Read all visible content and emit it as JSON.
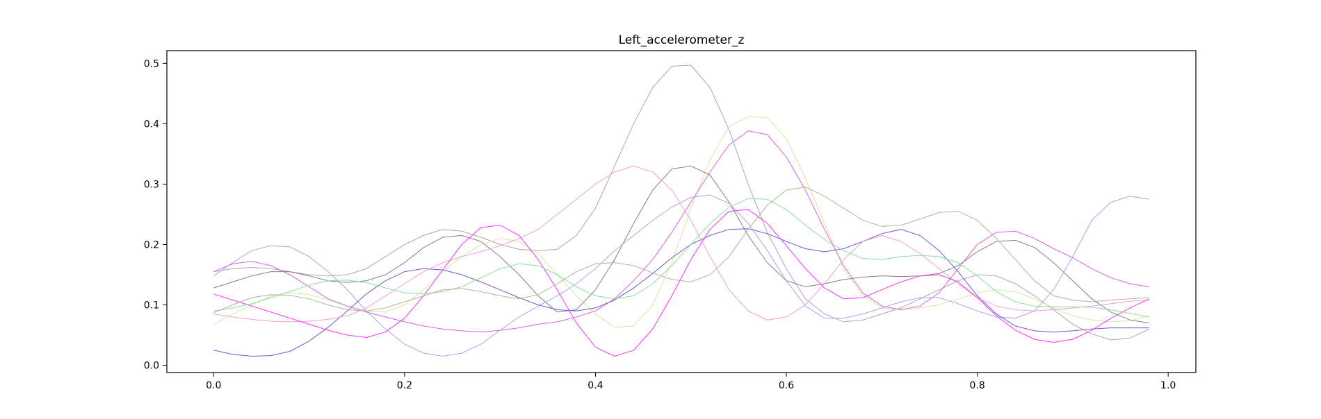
{
  "chart_data": {
    "type": "line",
    "title": "Left_accelerometer_z",
    "xlabel": "",
    "ylabel": "",
    "xlim": [
      -0.049,
      1.029
    ],
    "ylim": [
      -0.012,
      0.521
    ],
    "x_ticks": [
      0.0,
      0.2,
      0.4,
      0.6,
      0.8,
      1.0
    ],
    "x_tick_labels": [
      "0.0",
      "0.2",
      "0.4",
      "0.6",
      "0.8",
      "1.0"
    ],
    "y_ticks": [
      0.0,
      0.1,
      0.2,
      0.3,
      0.4,
      0.5
    ],
    "y_tick_labels": [
      "0.0",
      "0.1",
      "0.2",
      "0.3",
      "0.4",
      "0.5"
    ],
    "grid": false,
    "legend": "none",
    "x": [
      0.0,
      0.02,
      0.04,
      0.06,
      0.08,
      0.1,
      0.12,
      0.14,
      0.16,
      0.18,
      0.2,
      0.22,
      0.24,
      0.26,
      0.28,
      0.3,
      0.32,
      0.34,
      0.36,
      0.38,
      0.4,
      0.42,
      0.44,
      0.46,
      0.48,
      0.5,
      0.52,
      0.54,
      0.56,
      0.58,
      0.6,
      0.62,
      0.64,
      0.66,
      0.68,
      0.7,
      0.72,
      0.74,
      0.76,
      0.78,
      0.8,
      0.82,
      0.84,
      0.86,
      0.88,
      0.9,
      0.92,
      0.94,
      0.96,
      0.98
    ],
    "series": [
      {
        "color": "#b0a0b8",
        "values": [
          0.155,
          0.16,
          0.162,
          0.16,
          0.155,
          0.15,
          0.148,
          0.15,
          0.16,
          0.18,
          0.2,
          0.215,
          0.225,
          0.222,
          0.212,
          0.2,
          0.192,
          0.19,
          0.192,
          0.215,
          0.26,
          0.33,
          0.4,
          0.46,
          0.495,
          0.497,
          0.46,
          0.39,
          0.3,
          0.22,
          0.16,
          0.11,
          0.085,
          0.072,
          0.075,
          0.085,
          0.095,
          0.11,
          0.125,
          0.14,
          0.15,
          0.148,
          0.135,
          0.115,
          0.092,
          0.068,
          0.052,
          0.042,
          0.045,
          0.06
        ]
      },
      {
        "color": "#d4e8a0",
        "values": [
          0.068,
          0.085,
          0.1,
          0.115,
          0.12,
          0.117,
          0.108,
          0.098,
          0.09,
          0.088,
          0.1,
          0.125,
          0.155,
          0.18,
          0.2,
          0.21,
          0.205,
          0.185,
          0.15,
          0.115,
          0.085,
          0.063,
          0.065,
          0.1,
          0.17,
          0.26,
          0.34,
          0.395,
          0.412,
          0.41,
          0.375,
          0.31,
          0.235,
          0.16,
          0.115,
          0.095,
          0.092,
          0.095,
          0.1,
          0.11,
          0.12,
          0.125,
          0.122,
          0.11,
          0.095,
          0.082,
          0.075,
          0.072,
          0.074,
          0.082
        ]
      },
      {
        "color": "#e060e0",
        "values": [
          0.155,
          0.168,
          0.172,
          0.165,
          0.15,
          0.13,
          0.11,
          0.098,
          0.088,
          0.08,
          0.072,
          0.065,
          0.06,
          0.057,
          0.055,
          0.058,
          0.062,
          0.068,
          0.072,
          0.08,
          0.09,
          0.11,
          0.14,
          0.175,
          0.22,
          0.27,
          0.32,
          0.365,
          0.388,
          0.382,
          0.345,
          0.29,
          0.225,
          0.165,
          0.12,
          0.098,
          0.092,
          0.098,
          0.12,
          0.16,
          0.2,
          0.22,
          0.222,
          0.21,
          0.193,
          0.178,
          0.16,
          0.145,
          0.135,
          0.13
        ]
      },
      {
        "color": "#808080",
        "values": [
          0.128,
          0.138,
          0.148,
          0.155,
          0.155,
          0.148,
          0.14,
          0.137,
          0.14,
          0.15,
          0.17,
          0.195,
          0.212,
          0.215,
          0.205,
          0.18,
          0.15,
          0.115,
          0.088,
          0.092,
          0.125,
          0.175,
          0.235,
          0.29,
          0.325,
          0.33,
          0.315,
          0.27,
          0.215,
          0.17,
          0.14,
          0.13,
          0.135,
          0.142,
          0.146,
          0.148,
          0.147,
          0.148,
          0.152,
          0.165,
          0.188,
          0.205,
          0.207,
          0.195,
          0.17,
          0.14,
          0.11,
          0.088,
          0.075,
          0.07
        ]
      },
      {
        "color": "#a8a4f0",
        "values": [
          0.148,
          0.17,
          0.19,
          0.198,
          0.196,
          0.18,
          0.155,
          0.125,
          0.09,
          0.06,
          0.035,
          0.02,
          0.015,
          0.02,
          0.035,
          0.058,
          0.08,
          0.098,
          0.115,
          0.135,
          0.16,
          0.19,
          0.215,
          0.24,
          0.262,
          0.278,
          0.282,
          0.268,
          0.235,
          0.19,
          0.14,
          0.098,
          0.078,
          0.078,
          0.085,
          0.095,
          0.105,
          0.112,
          0.112,
          0.102,
          0.09,
          0.08,
          0.078,
          0.09,
          0.125,
          0.18,
          0.24,
          0.27,
          0.28,
          0.275
        ]
      },
      {
        "color": "#6a5acd",
        "values": [
          0.025,
          0.018,
          0.015,
          0.016,
          0.023,
          0.04,
          0.063,
          0.09,
          0.118,
          0.14,
          0.155,
          0.16,
          0.158,
          0.15,
          0.138,
          0.125,
          0.112,
          0.1,
          0.092,
          0.09,
          0.095,
          0.108,
          0.128,
          0.152,
          0.178,
          0.2,
          0.215,
          0.225,
          0.226,
          0.218,
          0.205,
          0.193,
          0.188,
          0.193,
          0.205,
          0.218,
          0.225,
          0.215,
          0.19,
          0.155,
          0.115,
          0.085,
          0.065,
          0.057,
          0.055,
          0.057,
          0.06,
          0.062,
          0.062,
          0.062
        ]
      },
      {
        "color": "#f0a0d0",
        "values": [
          0.085,
          0.08,
          0.076,
          0.073,
          0.072,
          0.073,
          0.076,
          0.082,
          0.095,
          0.115,
          0.135,
          0.155,
          0.17,
          0.18,
          0.188,
          0.198,
          0.21,
          0.225,
          0.25,
          0.275,
          0.3,
          0.32,
          0.33,
          0.32,
          0.29,
          0.24,
          0.18,
          0.125,
          0.09,
          0.075,
          0.08,
          0.1,
          0.135,
          0.175,
          0.205,
          0.215,
          0.205,
          0.185,
          0.16,
          0.135,
          0.112,
          0.098,
          0.092,
          0.09,
          0.092,
          0.095,
          0.098,
          0.102,
          0.106,
          0.108
        ]
      },
      {
        "color": "#ff30ff",
        "values": [
          0.118,
          0.108,
          0.098,
          0.088,
          0.078,
          0.068,
          0.058,
          0.05,
          0.046,
          0.055,
          0.078,
          0.115,
          0.158,
          0.2,
          0.228,
          0.232,
          0.215,
          0.175,
          0.125,
          0.07,
          0.03,
          0.015,
          0.025,
          0.06,
          0.115,
          0.175,
          0.225,
          0.255,
          0.258,
          0.235,
          0.198,
          0.16,
          0.128,
          0.11,
          0.112,
          0.125,
          0.138,
          0.148,
          0.15,
          0.138,
          0.112,
          0.082,
          0.058,
          0.043,
          0.038,
          0.043,
          0.058,
          0.078,
          0.095,
          0.11
        ]
      },
      {
        "color": "#88e0a0",
        "values": [
          0.09,
          0.095,
          0.102,
          0.112,
          0.122,
          0.133,
          0.14,
          0.141,
          0.137,
          0.128,
          0.12,
          0.118,
          0.122,
          0.13,
          0.145,
          0.16,
          0.168,
          0.165,
          0.15,
          0.13,
          0.115,
          0.11,
          0.115,
          0.135,
          0.165,
          0.2,
          0.235,
          0.262,
          0.276,
          0.275,
          0.258,
          0.232,
          0.208,
          0.19,
          0.177,
          0.175,
          0.18,
          0.182,
          0.18,
          0.17,
          0.148,
          0.122,
          0.105,
          0.098,
          0.097,
          0.097,
          0.096,
          0.092,
          0.086,
          0.08
        ]
      },
      {
        "color": "#b8b098",
        "values": [
          0.087,
          0.1,
          0.112,
          0.117,
          0.116,
          0.11,
          0.1,
          0.092,
          0.09,
          0.095,
          0.105,
          0.115,
          0.125,
          0.127,
          0.122,
          0.115,
          0.11,
          0.117,
          0.135,
          0.155,
          0.168,
          0.17,
          0.165,
          0.153,
          0.142,
          0.138,
          0.15,
          0.18,
          0.225,
          0.265,
          0.29,
          0.295,
          0.28,
          0.26,
          0.24,
          0.23,
          0.232,
          0.242,
          0.253,
          0.255,
          0.24,
          0.21,
          0.175,
          0.14,
          0.115,
          0.108,
          0.105,
          0.108,
          0.11,
          0.112
        ]
      }
    ]
  }
}
